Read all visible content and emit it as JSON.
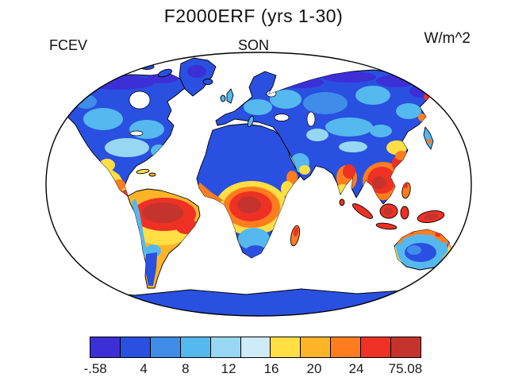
{
  "chart_data": {
    "type": "heatmap",
    "projection": "robinson-world-map",
    "title": "F2000ERF (yrs 1-30)",
    "subtitle_left": "FCEV",
    "subtitle_center": "SON",
    "units": "W/m^2",
    "ocean_mask": "white (no data over oceans)",
    "colorbar": {
      "orientation": "horizontal",
      "min": -0.58,
      "max": 75.08,
      "tick_labels": [
        "-.58",
        "4",
        "8",
        "12",
        "16",
        "20",
        "24",
        "75.08"
      ],
      "tick_positions": [
        0.017,
        0.163,
        0.289,
        0.419,
        0.548,
        0.677,
        0.804,
        0.952
      ],
      "colors": [
        "#3c2fd6",
        "#2950e0",
        "#3f8ce9",
        "#55b8ee",
        "#97d7f3",
        "#cfeaf9",
        "#ffdf43",
        "#ffb428",
        "#ff7d1e",
        "#ee3124",
        "#c5342c"
      ]
    },
    "region_values": [
      {
        "region": "Amazon Basin (South America)",
        "value_wm2": "> 24 (max ~75)"
      },
      {
        "region": "Congo Basin (Central Africa)",
        "value_wm2": "> 24"
      },
      {
        "region": "Southeast Asia / Maritime Continent (Indonesia, New Guinea)",
        "value_wm2": "> 24"
      },
      {
        "region": "India",
        "value_wm2": "16-24"
      },
      {
        "region": "Mexico / Central America",
        "value_wm2": "12-24"
      },
      {
        "region": "Sahara / Arabian Peninsula",
        "value_wm2": "0-8"
      },
      {
        "region": "Siberia / Canada / Greenland high latitudes",
        "value_wm2": "< 4"
      },
      {
        "region": "Antarctica",
        "value_wm2": "< 4"
      },
      {
        "region": "Australia interior",
        "value_wm2": "4-12"
      },
      {
        "region": "Northern Australia coast",
        "value_wm2": "16-24"
      },
      {
        "region": "Oceans",
        "value_wm2": "masked (white)"
      }
    ]
  }
}
